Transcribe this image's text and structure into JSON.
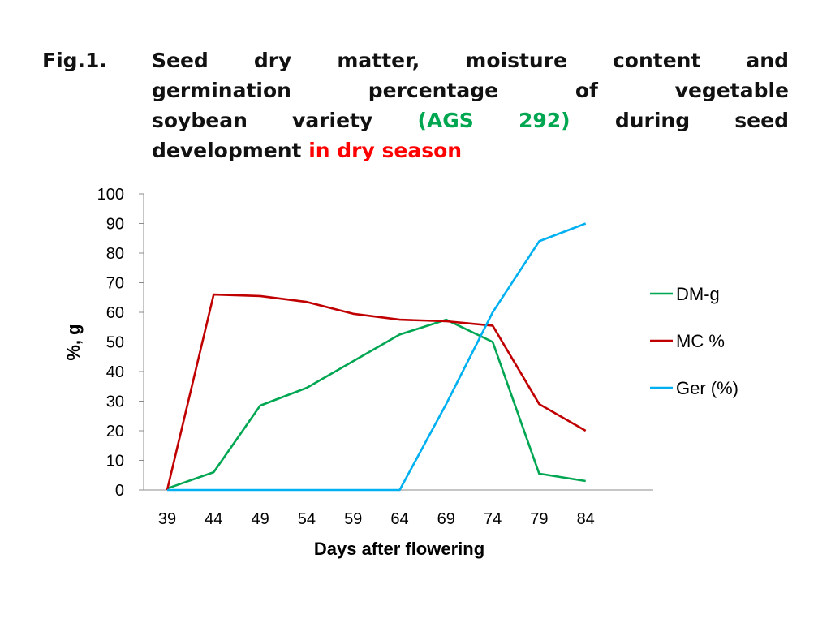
{
  "title": {
    "fig_label": "Fig.1.",
    "line1": "Seed dry matter, moisture content and",
    "line2": "germination percentage of vegetable",
    "line3_a": "soybean variety",
    "line3_b": "(AGS 292)",
    "line3_c": "during seed",
    "line4_a": "development",
    "line4_b": "in dry season"
  },
  "colors": {
    "variety": "#00a650",
    "season": "#ff0000"
  },
  "chart_data": {
    "type": "line",
    "x": [
      39,
      44,
      49,
      54,
      59,
      64,
      69,
      74,
      79,
      84
    ],
    "xlabel": "Days after flowering",
    "ylabel": "%, g",
    "ylim": [
      0,
      100
    ],
    "yticks": [
      0,
      10,
      20,
      30,
      40,
      50,
      60,
      70,
      80,
      90,
      100
    ],
    "grid": false,
    "legend_position": "right",
    "series": [
      {
        "name": "DM-g",
        "color": "#00a651",
        "values": [
          0.5,
          6,
          28.5,
          34.5,
          43.5,
          52.5,
          57.5,
          50,
          5.5,
          3
        ]
      },
      {
        "name": "MC %",
        "color": "#c00000",
        "values": [
          0,
          66,
          65.5,
          63.5,
          59.5,
          57.5,
          57,
          55.5,
          29,
          20
        ]
      },
      {
        "name": "Ger (%)",
        "color": "#00b0f0",
        "values": [
          0,
          0,
          0,
          0,
          0,
          0,
          29,
          60,
          84,
          90
        ]
      }
    ]
  }
}
